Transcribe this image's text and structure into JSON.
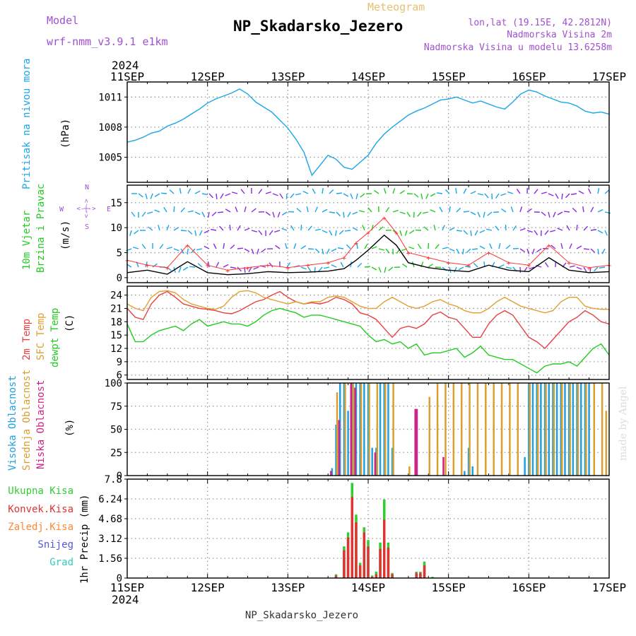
{
  "header": {
    "model_label": "Model",
    "model_name": "wrf-nmm_v3.9.1 e1km",
    "product": "Meteogram",
    "station": "NP_Skadarsko_Jezero",
    "lonlat": "lon,lat (19.15E, 42.2812N)",
    "elevation": "Nadmorska Visina 2m",
    "model_elevation": "Nadmorska Visina u modelu 13.6258m"
  },
  "time_axis": {
    "year": "2024",
    "labels": [
      "11SEP",
      "12SEP",
      "13SEP",
      "14SEP",
      "15SEP",
      "16SEP",
      "17SEP"
    ],
    "days": 6
  },
  "footer": {
    "station": "NP_Skadarsko_Jezero"
  },
  "watermark": "made by Angel",
  "colors": {
    "pressure": "#1aa6e8",
    "wind_speed": "#000000",
    "wind_gust": "#ff3333",
    "temp_2m": "#e84040",
    "temp_sfc": "#e0a030",
    "temp_dew": "#22cc22",
    "cloud_high": "#20a0e0",
    "cloud_mid": "#d9a030",
    "cloud_low": "#cc2288",
    "precip_total": "#33cc33",
    "precip_conv": "#e03333",
    "precip_strat": "#ff8833",
    "snow": "#5555dd",
    "hail": "#33ccbb",
    "grid": "#999999"
  },
  "chart_data": [
    {
      "type": "line",
      "panel": "pressure",
      "ylabel_title": "Pritisak na nivou mora",
      "ylabel_unit": "(hPa)",
      "yticks": [
        1005,
        1008,
        1011
      ],
      "ylim": [
        1002.5,
        1012.5
      ],
      "series": [
        {
          "name": "Pritisak na nivou mora",
          "x": [
            0,
            0.1,
            0.2,
            0.3,
            0.4,
            0.5,
            0.6,
            0.7,
            0.8,
            0.9,
            1.0,
            1.1,
            1.2,
            1.3,
            1.4,
            1.5,
            1.6,
            1.7,
            1.8,
            1.9,
            2.0,
            2.1,
            2.2,
            2.3,
            2.4,
            2.5,
            2.6,
            2.7,
            2.8,
            2.9,
            3.0,
            3.1,
            3.2,
            3.3,
            3.4,
            3.5,
            3.6,
            3.7,
            3.8,
            3.9,
            4.0,
            4.1,
            4.2,
            4.3,
            4.4,
            4.5,
            4.6,
            4.7,
            4.8,
            4.9,
            5.0,
            5.1,
            5.2,
            5.3,
            5.4,
            5.5,
            5.6,
            5.7,
            5.8,
            5.9,
            6.0
          ],
          "values": [
            1006.5,
            1006.7,
            1007.0,
            1007.4,
            1007.6,
            1008.1,
            1008.4,
            1008.8,
            1009.3,
            1009.8,
            1010.4,
            1010.8,
            1011.1,
            1011.4,
            1011.8,
            1011.3,
            1010.5,
            1010.0,
            1009.5,
            1008.7,
            1007.9,
            1006.8,
            1005.5,
            1003.2,
            1004.2,
            1005.2,
            1004.8,
            1004.0,
            1003.8,
            1004.5,
            1005.2,
            1006.4,
            1007.3,
            1008.0,
            1008.6,
            1009.2,
            1009.6,
            1009.9,
            1010.3,
            1010.7,
            1010.8,
            1011.0,
            1010.7,
            1010.4,
            1010.6,
            1010.3,
            1010.0,
            1009.8,
            1010.5,
            1011.3,
            1011.7,
            1011.5,
            1011.1,
            1010.8,
            1010.5,
            1010.4,
            1010.1,
            1009.6,
            1009.4,
            1009.5,
            1009.3
          ]
        }
      ]
    },
    {
      "type": "line",
      "panel": "wind",
      "ylabel_title": "10m Vjetar",
      "ylabel_title2": "Brzina i Pravac",
      "ylabel_unit": "(m/s)",
      "compass": {
        "n": "N",
        "s": "S",
        "e": "E",
        "w": "W",
        "arrow": "<-|->"
      },
      "yticks": [
        0,
        5,
        10,
        15
      ],
      "ylim": [
        -1,
        18.5
      ],
      "series": [
        {
          "name": "speed",
          "x": [
            0,
            0.25,
            0.5,
            0.75,
            1.0,
            1.25,
            1.5,
            1.75,
            2.0,
            2.25,
            2.5,
            2.7,
            2.85,
            3.0,
            3.2,
            3.35,
            3.5,
            3.75,
            4.0,
            4.25,
            4.5,
            4.75,
            5.0,
            5.25,
            5.5,
            5.75,
            6.0
          ],
          "values": [
            1.0,
            1.5,
            0.7,
            3.2,
            1.0,
            0.6,
            0.8,
            1.2,
            1.0,
            1.1,
            1.3,
            1.8,
            3.5,
            5.5,
            8.5,
            6.5,
            3.0,
            2.0,
            1.5,
            1.2,
            2.5,
            1.5,
            1.2,
            4.0,
            1.5,
            1.0,
            1.2
          ]
        },
        {
          "name": "gust",
          "x": [
            0,
            0.25,
            0.5,
            0.75,
            1.0,
            1.25,
            1.5,
            1.75,
            2.0,
            2.25,
            2.5,
            2.7,
            2.85,
            3.0,
            3.2,
            3.35,
            3.5,
            3.75,
            4.0,
            4.25,
            4.5,
            4.75,
            5.0,
            5.25,
            5.5,
            5.75,
            6.0
          ],
          "values": [
            3.5,
            2.5,
            2.0,
            6.5,
            2.5,
            1.5,
            2.0,
            2.5,
            2.0,
            2.5,
            3.0,
            4.0,
            7.0,
            9.0,
            12.0,
            9.0,
            5.0,
            4.0,
            3.0,
            2.5,
            5.0,
            3.0,
            2.5,
            6.5,
            3.0,
            2.0,
            2.5
          ]
        }
      ]
    },
    {
      "type": "line",
      "panel": "temperature",
      "ylabel_title": "2m Temp",
      "ylabel_title2": "SFC Temp",
      "ylabel_title3": "dewpt Temp",
      "ylabel_unit": "(C)",
      "yticks": [
        6,
        9,
        12,
        15,
        18,
        21,
        24
      ],
      "ylim": [
        5,
        26
      ],
      "series": [
        {
          "name": "2m Temp",
          "x": [
            0,
            0.1,
            0.2,
            0.3,
            0.4,
            0.5,
            0.6,
            0.7,
            0.8,
            0.9,
            1.0,
            1.1,
            1.2,
            1.3,
            1.4,
            1.5,
            1.6,
            1.7,
            1.8,
            1.9,
            2.0,
            2.1,
            2.2,
            2.3,
            2.4,
            2.5,
            2.6,
            2.7,
            2.8,
            2.9,
            3.0,
            3.1,
            3.2,
            3.3,
            3.4,
            3.5,
            3.6,
            3.7,
            3.8,
            3.9,
            4.0,
            4.1,
            4.2,
            4.3,
            4.4,
            4.5,
            4.6,
            4.7,
            4.8,
            4.9,
            5.0,
            5.1,
            5.2,
            5.3,
            5.4,
            5.5,
            5.6,
            5.7,
            5.8,
            5.9,
            6.0
          ],
          "values": [
            21,
            19,
            18.5,
            22,
            24,
            24.8,
            23.5,
            22,
            21.5,
            21,
            20.8,
            20.5,
            20,
            19.8,
            20.5,
            21.5,
            22.5,
            23,
            24,
            24.8,
            23.5,
            22.5,
            22,
            22.3,
            22,
            22.5,
            23.5,
            23,
            22,
            20,
            19.5,
            18.5,
            16.5,
            14.5,
            16.5,
            17,
            16.5,
            17.5,
            19.5,
            20.2,
            19,
            18.5,
            16.5,
            14.5,
            14.5,
            17.5,
            19.5,
            20.5,
            19.5,
            17,
            14.5,
            13.5,
            12.0,
            14,
            16,
            18,
            19,
            20.5,
            19.5,
            18,
            17.5
          ]
        },
        {
          "name": "SFC Temp",
          "x": [
            0,
            0.1,
            0.2,
            0.3,
            0.4,
            0.5,
            0.6,
            0.7,
            0.8,
            0.9,
            1.0,
            1.1,
            1.2,
            1.3,
            1.4,
            1.5,
            1.6,
            1.7,
            1.8,
            1.9,
            2.0,
            2.1,
            2.2,
            2.3,
            2.4,
            2.5,
            2.6,
            2.7,
            2.8,
            2.9,
            3.0,
            3.1,
            3.2,
            3.3,
            3.4,
            3.5,
            3.6,
            3.7,
            3.8,
            3.9,
            4.0,
            4.1,
            4.2,
            4.3,
            4.4,
            4.5,
            4.6,
            4.7,
            4.8,
            4.9,
            5.0,
            5.1,
            5.2,
            5.3,
            5.4,
            5.5,
            5.6,
            5.7,
            5.8,
            5.9,
            6.0
          ],
          "values": [
            22,
            21,
            20.5,
            23.5,
            24.8,
            25,
            24.5,
            23,
            22,
            21.5,
            21,
            20.8,
            21.5,
            23.5,
            24.8,
            25,
            24.5,
            23.5,
            23,
            22.5,
            22,
            22.5,
            22,
            22.5,
            22.5,
            23.5,
            23.8,
            23.5,
            22.5,
            21.5,
            21,
            21,
            22.5,
            23.5,
            22.5,
            21.5,
            21,
            21.5,
            22.5,
            23,
            22,
            21.5,
            20.5,
            20,
            20,
            21,
            22.5,
            23.5,
            22.5,
            21.5,
            21,
            20.5,
            20,
            20.5,
            22.5,
            23.5,
            23.5,
            21.5,
            21,
            20.8,
            20.8
          ]
        },
        {
          "name": "dewpt Temp",
          "x": [
            0,
            0.1,
            0.2,
            0.3,
            0.4,
            0.5,
            0.6,
            0.7,
            0.8,
            0.9,
            1.0,
            1.1,
            1.2,
            1.3,
            1.4,
            1.5,
            1.6,
            1.7,
            1.8,
            1.9,
            2.0,
            2.1,
            2.2,
            2.3,
            2.4,
            2.5,
            2.6,
            2.7,
            2.8,
            2.9,
            3.0,
            3.1,
            3.2,
            3.3,
            3.4,
            3.5,
            3.6,
            3.7,
            3.8,
            3.9,
            4.0,
            4.1,
            4.2,
            4.3,
            4.4,
            4.5,
            4.6,
            4.7,
            4.8,
            4.9,
            5.0,
            5.1,
            5.2,
            5.3,
            5.4,
            5.5,
            5.6,
            5.7,
            5.8,
            5.9,
            6.0
          ],
          "values": [
            17.5,
            13.5,
            13.5,
            15,
            16,
            16.5,
            17,
            16,
            17.5,
            18.5,
            17,
            17.5,
            18,
            17.5,
            17.5,
            17,
            18,
            19.5,
            20.5,
            21,
            20.5,
            20,
            19,
            19.5,
            19.5,
            19,
            18.5,
            18,
            17.5,
            17,
            15,
            13.5,
            14,
            13,
            13.5,
            12,
            13,
            10.5,
            11,
            11,
            11.5,
            12,
            10,
            11,
            12.5,
            10.5,
            10,
            9.5,
            9.5,
            8.5,
            7.5,
            6.5,
            8,
            8.5,
            8.5,
            9,
            8,
            10,
            12,
            13,
            10.5
          ]
        }
      ]
    },
    {
      "type": "bar",
      "panel": "cloud",
      "ylabel_title": "Visoka Oblacnost",
      "ylabel_title2": "Srednja Oblacnost",
      "ylabel_title3": "Niska Oblacnost",
      "ylabel_unit": "(%)",
      "yticks": [
        0,
        25,
        50,
        75,
        100
      ],
      "ylim": [
        0,
        100
      ],
      "series": [
        {
          "name": "Visoka Oblacnost",
          "x": [
            2.55,
            2.6,
            2.65,
            2.7,
            2.75,
            2.8,
            2.85,
            2.9,
            2.95,
            3.0,
            3.05,
            3.1,
            3.15,
            3.2,
            3.25,
            3.3,
            4.2,
            4.25,
            4.3,
            4.95,
            5.0,
            5.05,
            5.1,
            5.15,
            5.2,
            5.25,
            5.3,
            5.35,
            5.4,
            5.45,
            5.5,
            5.55,
            5.6,
            5.65,
            5.7,
            5.75
          ],
          "values": [
            8,
            55,
            100,
            100,
            70,
            100,
            100,
            100,
            100,
            100,
            30,
            30,
            100,
            100,
            100,
            30,
            5,
            30,
            10,
            20,
            100,
            100,
            100,
            100,
            100,
            100,
            100,
            100,
            100,
            100,
            100,
            100,
            100,
            100,
            100,
            100
          ]
        },
        {
          "name": "Srednja Oblacnost",
          "x": [
            2.6,
            2.7,
            2.8,
            2.9,
            3.0,
            3.1,
            3.2,
            3.3,
            3.5,
            3.75,
            3.85,
            3.95,
            4.05,
            4.15,
            4.25,
            4.35,
            4.45,
            4.55,
            4.65,
            4.75,
            4.85,
            5.0,
            5.1,
            5.2,
            5.3,
            5.4,
            5.5,
            5.6,
            5.7,
            5.8,
            5.9,
            5.95
          ],
          "values": [
            90,
            100,
            100,
            100,
            100,
            100,
            100,
            100,
            10,
            85,
            100,
            100,
            100,
            100,
            100,
            100,
            100,
            100,
            100,
            100,
            100,
            100,
            100,
            100,
            100,
            100,
            100,
            100,
            100,
            100,
            100,
            70
          ]
        },
        {
          "name": "Niska Oblacnost",
          "x": [
            2.55,
            2.65,
            2.8,
            2.85,
            3.1,
            3.6,
            3.62,
            3.95
          ],
          "values": [
            5,
            60,
            100,
            95,
            25,
            72,
            72,
            20
          ]
        }
      ]
    },
    {
      "type": "bar",
      "panel": "precip",
      "ylabel_unit": "1hr Precip (mm)",
      "legend": [
        "Ukupna Kisa",
        "Konvek.Kisa",
        "Zaledj.Kisa",
        "Snijeg",
        "Grad"
      ],
      "yticks": [
        0,
        1.56,
        3.12,
        4.68,
        6.24,
        7.8
      ],
      "ylim": [
        0,
        7.8
      ],
      "series": [
        {
          "name": "Ukupna Kisa",
          "x": [
            2.6,
            2.7,
            2.75,
            2.8,
            2.85,
            2.9,
            2.95,
            3.0,
            3.05,
            3.1,
            3.15,
            3.2,
            3.25,
            3.3,
            3.6,
            3.65,
            3.7,
            3.8
          ],
          "values": [
            0.3,
            2.5,
            3.6,
            7.5,
            5.0,
            1.2,
            4.0,
            3.0,
            0.2,
            0.5,
            2.8,
            6.2,
            2.8,
            0.4,
            0.5,
            0.5,
            1.3,
            0.1
          ]
        },
        {
          "name": "Konvek.Kisa",
          "x": [
            2.6,
            2.7,
            2.75,
            2.8,
            2.85,
            2.9,
            2.95,
            3.0,
            3.05,
            3.1,
            3.15,
            3.2,
            3.25,
            3.3,
            3.6,
            3.65,
            3.7
          ],
          "values": [
            0.2,
            2.2,
            3.2,
            6.4,
            4.4,
            1.0,
            3.6,
            2.5,
            0.1,
            0.3,
            2.3,
            4.6,
            2.4,
            0.3,
            0.4,
            0.4,
            1.0
          ]
        }
      ]
    }
  ]
}
